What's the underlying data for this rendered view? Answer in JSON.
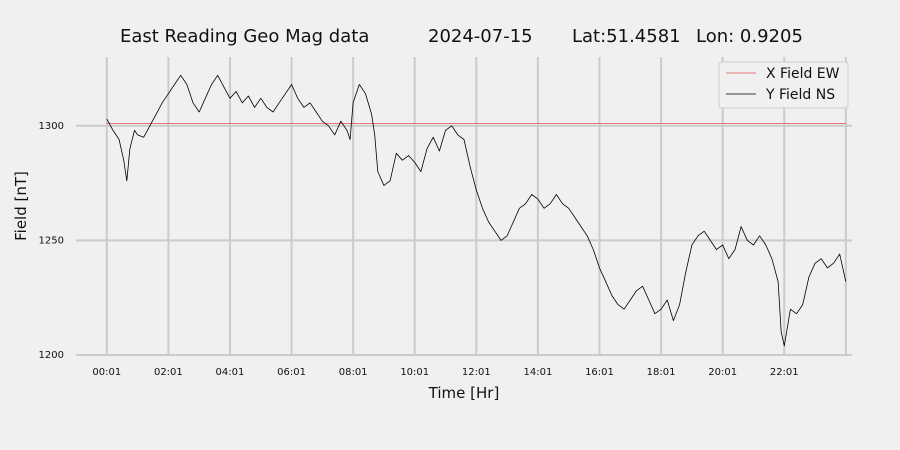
{
  "chart_data": {
    "type": "line",
    "title": {
      "name": "East Reading Geo Mag data",
      "date": "2024-07-15",
      "lat": "Lat:51.4581",
      "lon": "Lon: 0.9205"
    },
    "xlabel": "Time  [Hr]",
    "ylabel": "Field  [nT]",
    "x_unit": "hours since 00:01",
    "xlim": [
      -1,
      24.2
    ],
    "ylim": [
      1200,
      1330
    ],
    "x_ticks": [
      {
        "value": 0,
        "label": "00:01"
      },
      {
        "value": 2,
        "label": "02:01"
      },
      {
        "value": 4,
        "label": "04:01"
      },
      {
        "value": 6,
        "label": "06:01"
      },
      {
        "value": 8,
        "label": "08:01"
      },
      {
        "value": 10,
        "label": "10:01"
      },
      {
        "value": 12,
        "label": "12:01"
      },
      {
        "value": 14,
        "label": "14:01"
      },
      {
        "value": 16,
        "label": "16:01"
      },
      {
        "value": 18,
        "label": "18:01"
      },
      {
        "value": 20,
        "label": "20:01"
      },
      {
        "value": 22,
        "label": "22:01"
      }
    ],
    "x_grid_extra": [
      24
    ],
    "y_ticks": [
      {
        "value": 1200,
        "label": "1200"
      },
      {
        "value": 1250,
        "label": "1250"
      },
      {
        "value": 1300,
        "label": "1300"
      }
    ],
    "grid": true,
    "legend_position": "top-right",
    "series": [
      {
        "name": "X Field EW",
        "color": "#e0504a",
        "x": [
          0,
          24
        ],
        "y": [
          1301,
          1301
        ]
      },
      {
        "name": "Y Field NS",
        "color": "#000000",
        "x": [
          0,
          0.2,
          0.4,
          0.55,
          0.65,
          0.75,
          0.9,
          1.0,
          1.2,
          1.4,
          1.6,
          1.8,
          2.0,
          2.2,
          2.4,
          2.6,
          2.8,
          3.0,
          3.2,
          3.4,
          3.6,
          3.8,
          4.0,
          4.2,
          4.4,
          4.6,
          4.8,
          5.0,
          5.2,
          5.4,
          5.6,
          5.8,
          6.0,
          6.2,
          6.4,
          6.6,
          6.8,
          7.0,
          7.2,
          7.4,
          7.6,
          7.8,
          7.9,
          8.0,
          8.2,
          8.4,
          8.6,
          8.7,
          8.8,
          9.0,
          9.2,
          9.4,
          9.6,
          9.8,
          10.0,
          10.2,
          10.4,
          10.6,
          10.8,
          11.0,
          11.2,
          11.4,
          11.6,
          11.8,
          12.0,
          12.2,
          12.4,
          12.6,
          12.8,
          13.0,
          13.2,
          13.4,
          13.6,
          13.8,
          14.0,
          14.2,
          14.4,
          14.6,
          14.8,
          15.0,
          15.2,
          15.4,
          15.6,
          15.8,
          16.0,
          16.2,
          16.4,
          16.6,
          16.8,
          17.0,
          17.2,
          17.4,
          17.6,
          17.8,
          18.0,
          18.2,
          18.4,
          18.6,
          18.8,
          19.0,
          19.2,
          19.4,
          19.6,
          19.8,
          20.0,
          20.2,
          20.4,
          20.6,
          20.8,
          21.0,
          21.2,
          21.4,
          21.6,
          21.8,
          21.9,
          22.0,
          22.2,
          22.4,
          22.6,
          22.8,
          23.0,
          23.2,
          23.4,
          23.6,
          23.8,
          24.0
        ],
        "y": [
          1303,
          1298,
          1294,
          1285,
          1276,
          1290,
          1298,
          1296,
          1295,
          1300,
          1305,
          1310,
          1314,
          1318,
          1322,
          1318,
          1310,
          1306,
          1312,
          1318,
          1322,
          1317,
          1312,
          1315,
          1310,
          1313,
          1308,
          1312,
          1308,
          1306,
          1310,
          1314,
          1318,
          1312,
          1308,
          1310,
          1306,
          1302,
          1300,
          1296,
          1302,
          1298,
          1294,
          1310,
          1318,
          1314,
          1305,
          1296,
          1280,
          1274,
          1276,
          1288,
          1285,
          1287,
          1284,
          1280,
          1290,
          1295,
          1289,
          1298,
          1300,
          1296,
          1294,
          1282,
          1272,
          1264,
          1258,
          1254,
          1250,
          1252,
          1258,
          1264,
          1266,
          1270,
          1268,
          1264,
          1266,
          1270,
          1266,
          1264,
          1260,
          1256,
          1252,
          1246,
          1238,
          1232,
          1226,
          1222,
          1220,
          1224,
          1228,
          1230,
          1224,
          1218,
          1220,
          1224,
          1215,
          1222,
          1236,
          1248,
          1252,
          1254,
          1250,
          1246,
          1248,
          1242,
          1246,
          1256,
          1250,
          1248,
          1252,
          1248,
          1242,
          1232,
          1210,
          1204,
          1220,
          1218,
          1222,
          1234,
          1240,
          1242,
          1238,
          1240,
          1244,
          1232
        ]
      }
    ]
  }
}
